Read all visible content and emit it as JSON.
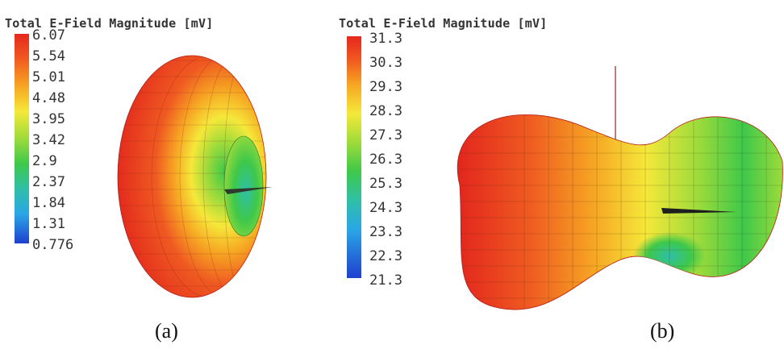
{
  "panel_a": {
    "title": "Total E-Field Magnitude [mV]",
    "scale": [
      "6.07",
      "5.54",
      "5.01",
      "4.48",
      "3.95",
      "3.42",
      "2.9",
      "2.37",
      "1.84",
      "1.31",
      "0.776"
    ],
    "caption": "(a)"
  },
  "panel_b": {
    "title": "Total E-Field Magnitude [mV]",
    "scale": [
      "31.3",
      "30.3",
      "29.3",
      "28.3",
      "27.3",
      "26.3",
      "25.3",
      "24.3",
      "23.3",
      "22.3",
      "21.3"
    ],
    "caption": "(b)"
  },
  "colors": {
    "high": "#e6271e",
    "mid_high": "#f6a623",
    "mid": "#f5e83a",
    "mid_low": "#3ec84a",
    "low_cyan": "#2fbfa8",
    "low": "#1f3fcf"
  }
}
